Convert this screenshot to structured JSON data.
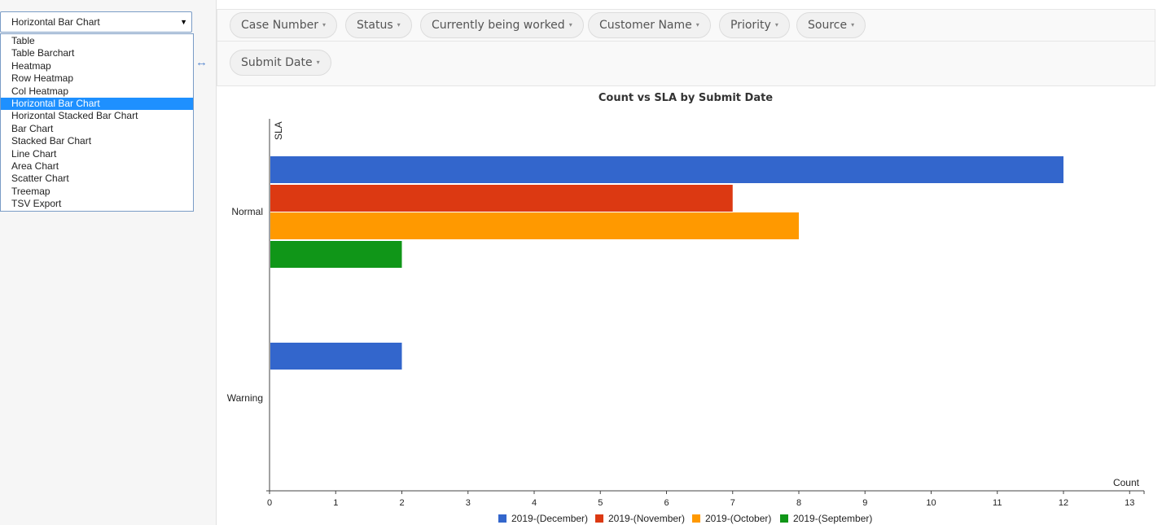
{
  "renderer": {
    "selected_label": "Horizontal Bar Chart",
    "options": [
      "Table",
      "Table Barchart",
      "Heatmap",
      "Row Heatmap",
      "Col Heatmap",
      "Horizontal Bar Chart",
      "Horizontal Stacked Bar Chart",
      "Bar Chart",
      "Stacked Bar Chart",
      "Line Chart",
      "Area Chart",
      "Scatter Chart",
      "Treemap",
      "TSV Export"
    ],
    "selected_index": 5
  },
  "swap_icon": "↔",
  "columns": [
    {
      "label": "Case Number"
    },
    {
      "label": "Status"
    },
    {
      "label": "Currently being worked"
    },
    {
      "label": "Customer Name"
    },
    {
      "label": "Priority"
    },
    {
      "label": "Source"
    }
  ],
  "rows": [
    {
      "label": "Submit Date"
    }
  ],
  "dropdown_arrow": "▾",
  "chart_data": {
    "type": "bar",
    "orientation": "horizontal",
    "title": "Count vs SLA by Submit Date",
    "xlabel": "Count",
    "ylabel": "SLA",
    "categories": [
      "Normal",
      "Warning"
    ],
    "xlim": [
      0,
      13
    ],
    "xticks": [
      0,
      1,
      2,
      3,
      4,
      5,
      6,
      7,
      8,
      9,
      10,
      11,
      12,
      13
    ],
    "legend_position": "bottom",
    "series": [
      {
        "name": "2019-(December)",
        "color": "#3366cc",
        "values": [
          12,
          2
        ]
      },
      {
        "name": "2019-(November)",
        "color": "#dc3912",
        "values": [
          7,
          null
        ]
      },
      {
        "name": "2019-(October)",
        "color": "#ff9900",
        "values": [
          8,
          null
        ]
      },
      {
        "name": "2019-(September)",
        "color": "#109618",
        "values": [
          2,
          null
        ]
      }
    ]
  }
}
